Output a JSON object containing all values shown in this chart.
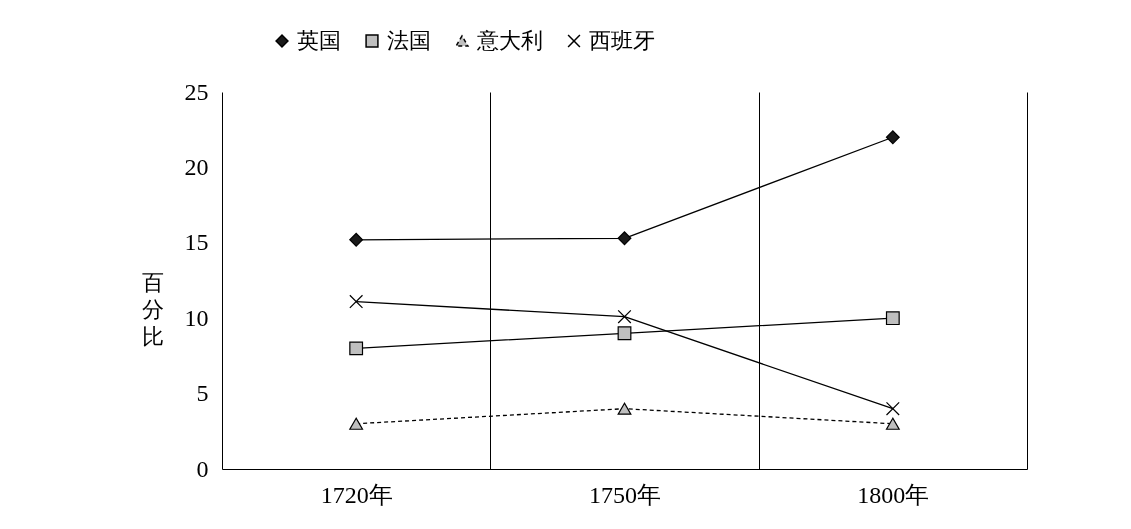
{
  "chart_data": {
    "type": "line",
    "ylabel": "百分比",
    "categories": [
      "1720年",
      "1750年",
      "1800年"
    ],
    "series": [
      {
        "name": "英国",
        "color": "#1a1a1a",
        "marker": "diamond",
        "values": [
          15.2,
          15.3,
          22
        ]
      },
      {
        "name": "法国",
        "color": "#bfbfbf",
        "marker": "square",
        "values": [
          8,
          9,
          10
        ]
      },
      {
        "name": "意大利",
        "color": "#bfbfbf",
        "marker": "triangle",
        "line_style": "dashed",
        "values": [
          3,
          4,
          3
        ]
      },
      {
        "name": "西班牙",
        "color": "#000000",
        "marker": "cross",
        "values": [
          11.1,
          10.1,
          4
        ]
      }
    ],
    "ylim": [
      0,
      25
    ],
    "yticks": [
      0,
      5,
      10,
      15,
      20,
      25
    ],
    "grid": "x",
    "legend": "top"
  }
}
